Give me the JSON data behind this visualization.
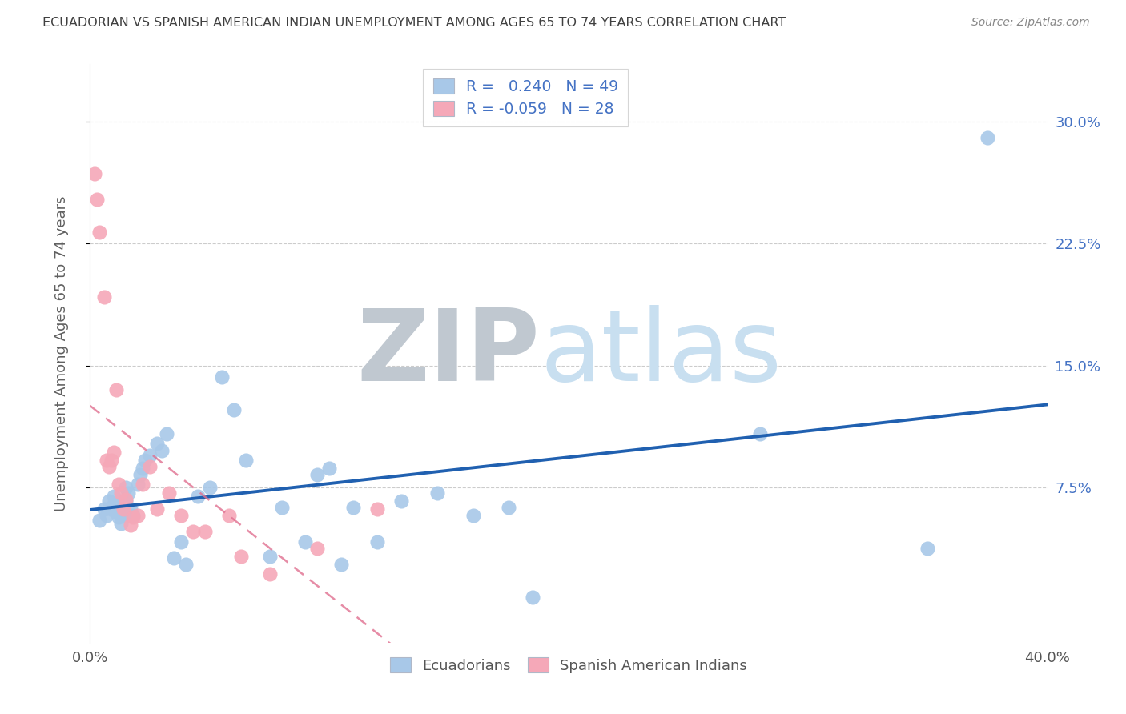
{
  "title": "ECUADORIAN VS SPANISH AMERICAN INDIAN UNEMPLOYMENT AMONG AGES 65 TO 74 YEARS CORRELATION CHART",
  "source": "Source: ZipAtlas.com",
  "ylabel": "Unemployment Among Ages 65 to 74 years",
  "xlim": [
    0.0,
    0.4
  ],
  "ylim": [
    -0.02,
    0.335
  ],
  "yticks_right": [
    0.075,
    0.15,
    0.225,
    0.3
  ],
  "ytick_labels_right": [
    "7.5%",
    "15.0%",
    "22.5%",
    "30.0%"
  ],
  "blue_R": 0.24,
  "blue_N": 49,
  "pink_R": -0.059,
  "pink_N": 28,
  "blue_fill": "#a8c8e8",
  "pink_fill": "#f5a8b8",
  "blue_line": "#2060b0",
  "pink_line": "#e07090",
  "title_color": "#404040",
  "source_color": "#888888",
  "label_color": "#606060",
  "tick_color_right": "#4472c4",
  "grid_color": "#cccccc",
  "legend_text_color": "#4472c4",
  "watermark_zip_color": "#c0c8d0",
  "watermark_atlas_color": "#c8dff0",
  "blue_points_x": [
    0.004,
    0.006,
    0.007,
    0.008,
    0.009,
    0.01,
    0.01,
    0.011,
    0.012,
    0.013,
    0.013,
    0.014,
    0.015,
    0.015,
    0.016,
    0.017,
    0.018,
    0.02,
    0.021,
    0.022,
    0.023,
    0.025,
    0.028,
    0.03,
    0.032,
    0.035,
    0.038,
    0.04,
    0.045,
    0.05,
    0.055,
    0.06,
    0.065,
    0.075,
    0.08,
    0.09,
    0.095,
    0.1,
    0.105,
    0.11,
    0.12,
    0.13,
    0.145,
    0.16,
    0.175,
    0.185,
    0.28,
    0.35,
    0.375
  ],
  "blue_points_y": [
    0.055,
    0.062,
    0.058,
    0.067,
    0.062,
    0.07,
    0.065,
    0.06,
    0.057,
    0.053,
    0.062,
    0.058,
    0.075,
    0.067,
    0.072,
    0.062,
    0.058,
    0.077,
    0.083,
    0.087,
    0.092,
    0.095,
    0.102,
    0.098,
    0.108,
    0.032,
    0.042,
    0.028,
    0.07,
    0.075,
    0.143,
    0.123,
    0.092,
    0.033,
    0.063,
    0.042,
    0.083,
    0.087,
    0.028,
    0.063,
    0.042,
    0.067,
    0.072,
    0.058,
    0.063,
    0.008,
    0.108,
    0.038,
    0.29
  ],
  "pink_points_x": [
    0.002,
    0.003,
    0.004,
    0.006,
    0.007,
    0.008,
    0.009,
    0.01,
    0.011,
    0.012,
    0.013,
    0.014,
    0.015,
    0.017,
    0.018,
    0.02,
    0.022,
    0.025,
    0.028,
    0.033,
    0.038,
    0.043,
    0.048,
    0.058,
    0.063,
    0.075,
    0.095,
    0.12
  ],
  "pink_points_y": [
    0.268,
    0.252,
    0.232,
    0.192,
    0.092,
    0.088,
    0.092,
    0.097,
    0.135,
    0.077,
    0.072,
    0.062,
    0.068,
    0.052,
    0.057,
    0.058,
    0.077,
    0.088,
    0.062,
    0.072,
    0.058,
    0.048,
    0.048,
    0.058,
    0.033,
    0.022,
    0.038,
    0.062
  ]
}
